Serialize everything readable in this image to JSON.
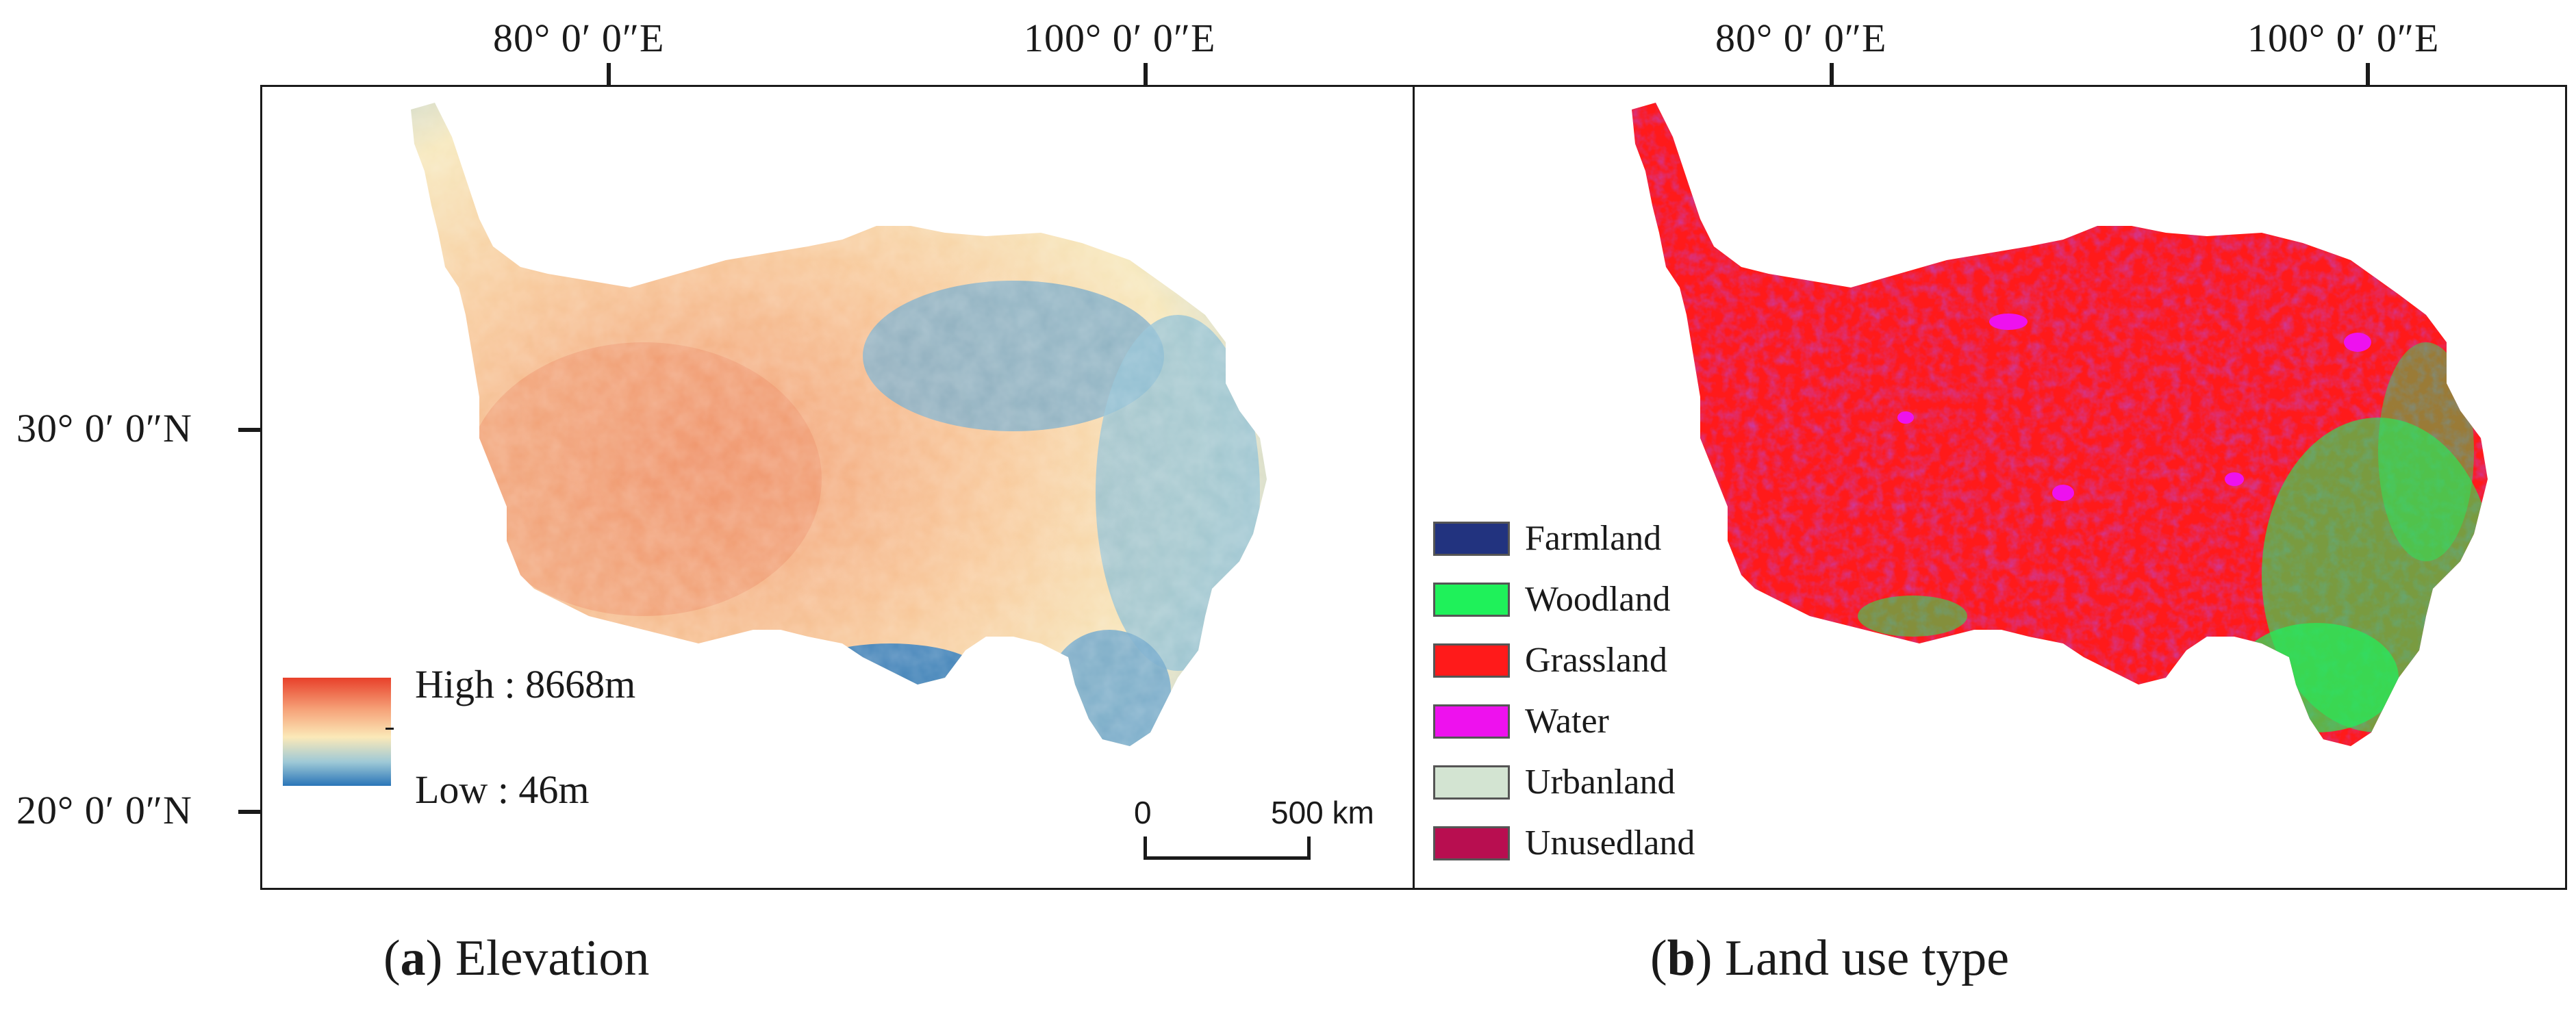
{
  "coordinates": {
    "lon_labels": [
      "80° 0′ 0″E",
      "100° 0′ 0″E"
    ],
    "lat_labels": [
      "30° 0′ 0″N",
      "20° 0′ 0″N"
    ]
  },
  "panel_a": {
    "caption_letter": "a",
    "caption_text": "Elevation",
    "legend_high": "High : 8668m",
    "legend_low": "Low : 46m",
    "gradient_colors": [
      "#e8402a",
      "#f6a47a",
      "#fbe9b8",
      "#9ec9d6",
      "#2a75b8"
    ],
    "scalebar_zero": "0",
    "scalebar_end": "500 km"
  },
  "panel_b": {
    "caption_letter": "b",
    "caption_text": "Land use type",
    "legend": [
      {
        "label": "Farmland",
        "color": "#22337f"
      },
      {
        "label": "Woodland",
        "color": "#1ff15a"
      },
      {
        "label": "Grassland",
        "color": "#ff1a1a"
      },
      {
        "label": "Water",
        "color": "#ee11ee"
      },
      {
        "label": "Urbanland",
        "color": "#d3e4d2"
      },
      {
        "label": "Unusedland",
        "color": "#b80e50"
      }
    ]
  }
}
